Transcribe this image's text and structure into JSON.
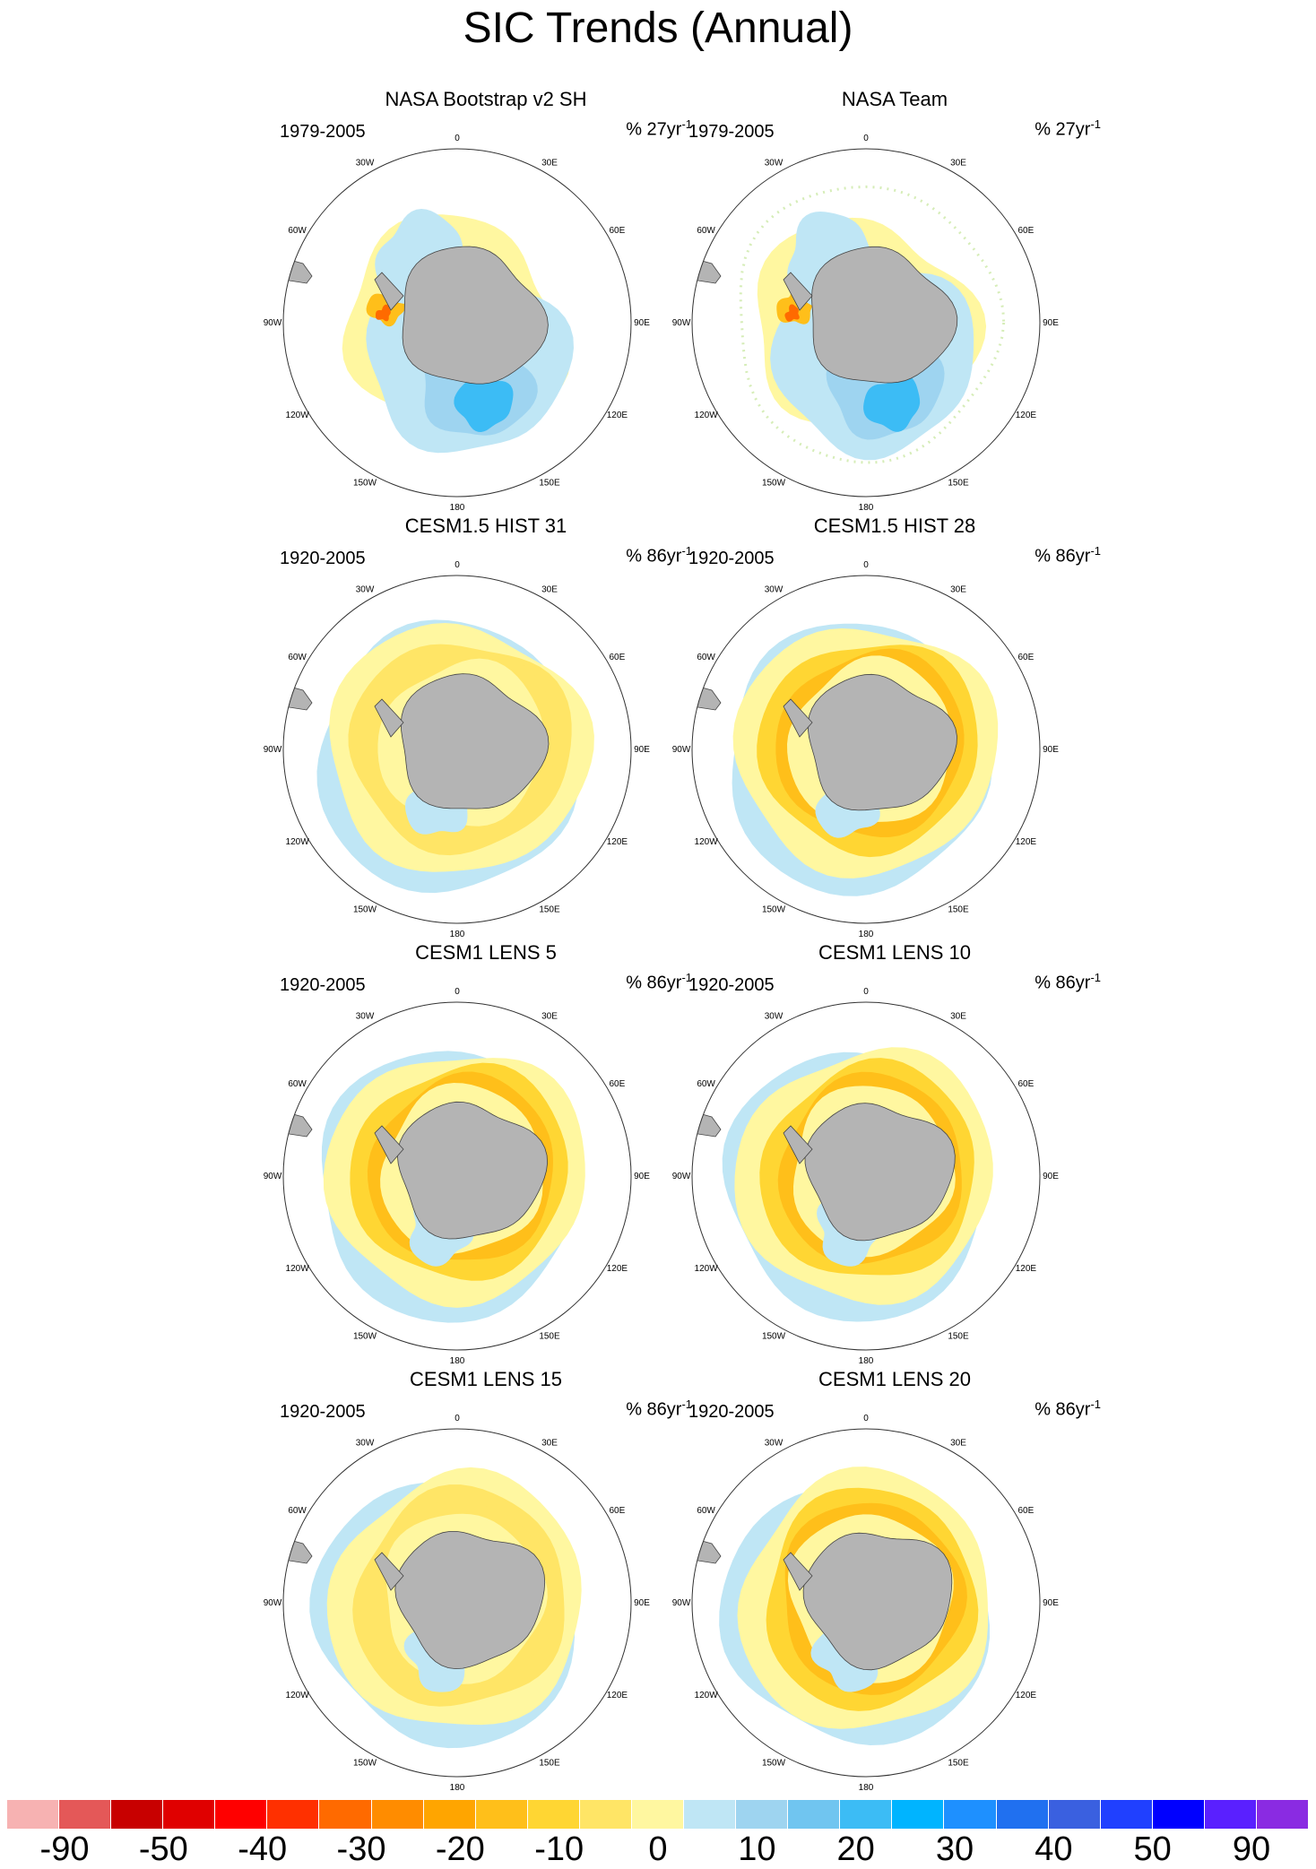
{
  "title": "SIC Trends (Annual)",
  "panels": [
    {
      "title": "NASA Bootstrap v2 SH",
      "period": "1979-2005",
      "unit": "% 27yr",
      "unit_sup": "-1"
    },
    {
      "title": "NASA Team",
      "period": "1979-2005",
      "unit": "% 27yr",
      "unit_sup": "-1"
    },
    {
      "title": "CESM1.5 HIST 31",
      "period": "1920-2005",
      "unit": "% 86yr",
      "unit_sup": "-1"
    },
    {
      "title": "CESM1.5 HIST 28",
      "period": "1920-2005",
      "unit": "% 86yr",
      "unit_sup": "-1"
    },
    {
      "title": "CESM1 LENS 5",
      "period": "1920-2005",
      "unit": "% 86yr",
      "unit_sup": "-1"
    },
    {
      "title": "CESM1 LENS 10",
      "period": "1920-2005",
      "unit": "% 86yr",
      "unit_sup": "-1"
    },
    {
      "title": "CESM1 LENS 15",
      "period": "1920-2005",
      "unit": "% 86yr",
      "unit_sup": "-1"
    },
    {
      "title": "CESM1 LENS 20",
      "period": "1920-2005",
      "unit": "% 86yr",
      "unit_sup": "-1"
    }
  ],
  "longitude_labels": [
    "0",
    "30E",
    "60E",
    "90E",
    "120E",
    "150E",
    "180",
    "150W",
    "120W",
    "90W",
    "60W",
    "30W"
  ],
  "colorbar": {
    "labels": [
      "-90",
      "-50",
      "-40",
      "-30",
      "-20",
      "-10",
      "0",
      "10",
      "20",
      "30",
      "40",
      "50",
      "90"
    ],
    "colors": [
      "#f7b2b2",
      "#e45858",
      "#c80000",
      "#e00000",
      "#ff0000",
      "#ff3000",
      "#ff6a00",
      "#ff8c00",
      "#ffa500",
      "#ffbf1a",
      "#ffd633",
      "#ffe566",
      "#fff7a0",
      "#bfe6f5",
      "#9ed4f0",
      "#70c5f0",
      "#3cbcf5",
      "#00b4ff",
      "#1e90ff",
      "#2070f0",
      "#3a60e0",
      "#2040ff",
      "#0000ff",
      "#5a20ff",
      "#8a2be2"
    ]
  },
  "colors": {
    "land": "#b4b4b4",
    "background": "#ffffff"
  }
}
